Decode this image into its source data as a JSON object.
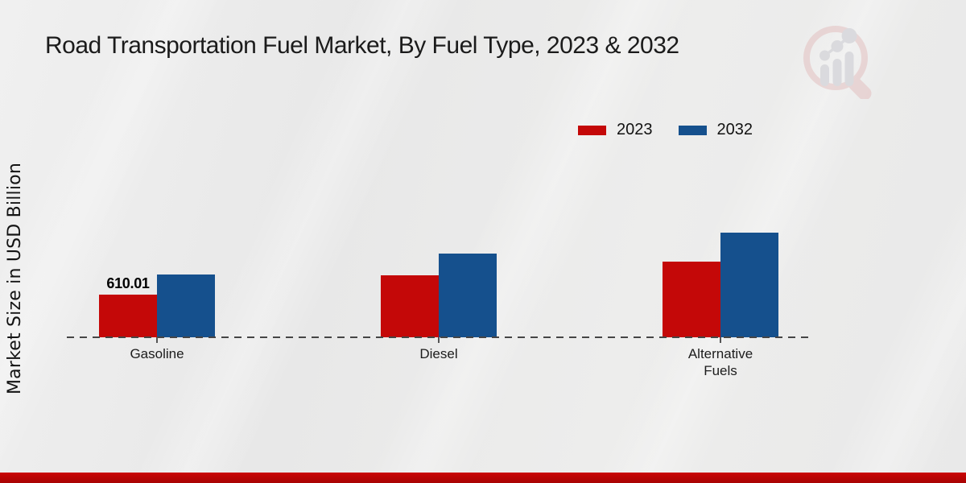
{
  "page": {
    "title": "Road Transportation Fuel Market, By Fuel Type, 2023 & 2032",
    "ylabel": "Market Size in USD Billion",
    "footer_bar_color": "#c00606",
    "logo": "magnifier-growth-chart-watermark"
  },
  "chart_data": {
    "type": "bar",
    "title": "Road Transportation Fuel Market, By Fuel Type, 2023 & 2032",
    "ylabel": "Market Size in USD Billion",
    "categories": [
      "Gasoline",
      "Diesel",
      "Alternative Fuels"
    ],
    "series": [
      {
        "name": "2023",
        "color": "#c40808",
        "values": [
          610.01,
          890,
          1080
        ],
        "labels": [
          "610.01",
          "",
          ""
        ]
      },
      {
        "name": "2032",
        "color": "#15508d",
        "values": [
          900,
          1200,
          1500
        ],
        "labels": [
          "",
          "",
          ""
        ]
      }
    ],
    "legend_position": "top-right",
    "x_axis_style": "dashed-baseline",
    "gridlines": false,
    "y_ticks_shown": false
  }
}
